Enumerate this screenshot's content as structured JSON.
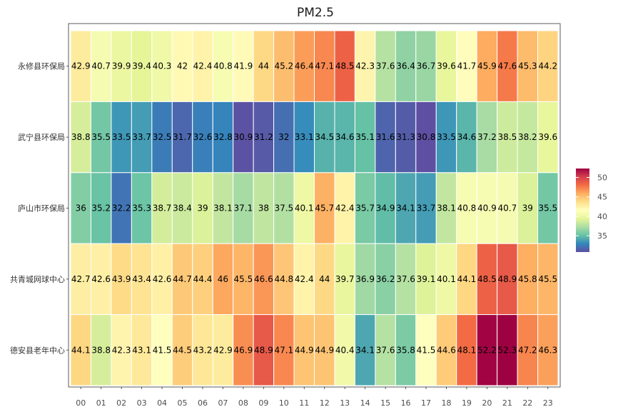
{
  "chart_data": {
    "type": "heatmap",
    "title": "PM2.5",
    "xlabel": "",
    "ylabel": "",
    "x_categories": [
      "00",
      "01",
      "02",
      "03",
      "04",
      "05",
      "06",
      "07",
      "08",
      "09",
      "10",
      "11",
      "12",
      "13",
      "14",
      "15",
      "16",
      "17",
      "18",
      "19",
      "20",
      "21",
      "22",
      "23"
    ],
    "y_categories": [
      "永修县环保局",
      "武宁县环保局",
      "庐山市环保局",
      "共青城网球中心",
      "德安县老年中心"
    ],
    "values": [
      [
        42.9,
        40.7,
        39.9,
        39.4,
        40.3,
        42,
        42.4,
        40.8,
        41.9,
        44,
        45.2,
        46.4,
        47.1,
        48.5,
        42.3,
        37.6,
        36.4,
        36.7,
        39.6,
        41.7,
        45.9,
        47.6,
        45.3,
        44.2
      ],
      [
        38.8,
        35.5,
        33.5,
        33.7,
        32.5,
        31.7,
        32.6,
        32.8,
        30.9,
        31.2,
        32,
        33.1,
        34.5,
        34.6,
        35.1,
        31.6,
        31.3,
        30.8,
        33.5,
        34.6,
        37.2,
        38.5,
        38.2,
        39.6
      ],
      [
        36,
        35.2,
        32.2,
        35.3,
        38.7,
        38.4,
        39,
        38.1,
        37.1,
        38,
        37.5,
        40.1,
        45.7,
        42.4,
        35.7,
        34.9,
        34.1,
        33.7,
        38.1,
        40.8,
        40.9,
        40.7,
        39,
        35.5
      ],
      [
        42.7,
        42.6,
        43.9,
        43.4,
        42.6,
        44.7,
        44.4,
        46,
        45.5,
        46.6,
        44.8,
        42.4,
        44,
        39.7,
        36.9,
        36.2,
        37.6,
        39.1,
        40.1,
        44.1,
        48.5,
        48.9,
        45.8,
        45.5
      ],
      [
        44.1,
        38.8,
        42.3,
        43.1,
        41.5,
        44.5,
        43.2,
        42.9,
        46.9,
        48.9,
        47.1,
        44.9,
        44.9,
        40.4,
        34.1,
        37.6,
        35.8,
        41.5,
        44.6,
        48.1,
        52.2,
        52.3,
        47.2,
        46.3
      ]
    ],
    "display_labels": [
      [
        "42.9",
        "40.7",
        "39.9",
        "39.4",
        "40.3",
        "42",
        "42.4",
        "40.8",
        "41.9",
        "44",
        "45.2",
        "46.4",
        "47.1",
        "48.5",
        "42.3",
        "37.6",
        "36.4",
        "36.7",
        "39.6",
        "41.7",
        "45.9",
        "47.6",
        "45.3",
        "44.2"
      ],
      [
        "38.8",
        "35.5",
        "33.5",
        "33.7",
        "32.5",
        "31.7",
        "32.6",
        "32.8",
        "30.9",
        "31.2",
        "32",
        "33.1",
        "34.5",
        "34.6",
        "35.1",
        "31.6",
        "31.3",
        "30.8",
        "33.5",
        "34.6",
        "37.2",
        "38.5",
        "38.2",
        "39.6"
      ],
      [
        "36",
        "35.2",
        "32.2",
        "35.3",
        "38.7",
        "38.4",
        "39",
        "38.1",
        "37.1",
        "38",
        "37.5",
        "40.1",
        "45.7",
        "42.4",
        "35.7",
        "34.9",
        "34.1",
        "33.7",
        "38.1",
        "40.8",
        "40.9",
        "40.7",
        "39",
        "35.5"
      ],
      [
        "42.7",
        "42.6",
        "43.9",
        "43.4",
        "42.6",
        "44.7",
        "44.4",
        "46",
        "45.5",
        "46.6",
        "44.8",
        "42.4",
        "44",
        "39.7",
        "36.9",
        "36.2",
        "37.6",
        "39.1",
        "40.1",
        "44.1",
        "48.5",
        "48.9",
        "45.8",
        "45.5"
      ],
      [
        "44.1",
        "38.8",
        "42.3",
        "43.1",
        "41.5",
        "44.5",
        "43.2",
        "42.9",
        "46.9",
        "48.9",
        "47.1",
        "44.9",
        "44.9",
        "40.4",
        "34.1",
        "37.6",
        "35.8",
        "41.5",
        "44.6",
        "48.1",
        "52.2",
        "52.3",
        "47.2",
        "46.3"
      ]
    ],
    "color_range": [
      30.8,
      52.3
    ],
    "color_scale": [
      "#5E4FA2",
      "#3288BD",
      "#66C2A5",
      "#ABDDA4",
      "#E6F598",
      "#FFFFBF",
      "#FEE08B",
      "#FDAE61",
      "#F46D43",
      "#D53E4F",
      "#9E0142"
    ],
    "legend": {
      "ticks": [
        35,
        40,
        45,
        50
      ],
      "tick_labels": [
        "35",
        "40",
        "45",
        "50"
      ],
      "position": "right"
    },
    "grid": false
  }
}
